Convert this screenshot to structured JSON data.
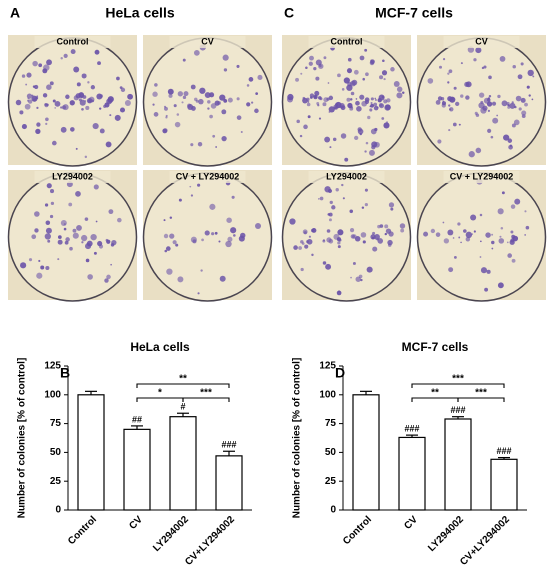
{
  "photo_groups": [
    {
      "letter": "A",
      "title": "HeLa cells",
      "panels": [
        "Control",
        "CV",
        "LY294002",
        "CV + LY294002"
      ]
    },
    {
      "letter": "C",
      "title": "MCF-7 cells",
      "panels": [
        "Control",
        "CV",
        "LY294002",
        "CV + LY294002"
      ]
    }
  ],
  "chart_data": [
    {
      "type": "bar",
      "letter": "B",
      "title": "HeLa cells",
      "y_label": "Number of colonies [% of control]",
      "categories": [
        "Control",
        "CV",
        "LY294002",
        "CV+LY294002"
      ],
      "values": [
        100,
        70,
        81,
        47
      ],
      "errors": [
        3,
        3,
        3,
        4
      ],
      "color": "#ffffff",
      "annotations": [
        null,
        "##",
        "#",
        "###"
      ],
      "comparisons": [
        {
          "groups": [
            "CV",
            "LY294002"
          ],
          "label": "*"
        },
        {
          "groups": [
            "LY294002",
            "CV+LY294002"
          ],
          "label": "***"
        },
        {
          "groups": [
            "CV",
            "CV+LY294002"
          ],
          "label": "**"
        }
      ],
      "ylim": [
        0,
        125
      ],
      "yticks": [
        0,
        25,
        50,
        75,
        100,
        125
      ]
    },
    {
      "type": "bar",
      "letter": "D",
      "title": "MCF-7 cells",
      "y_label": "Number of colonies [% of control]",
      "categories": [
        "Control",
        "CV",
        "LY294002",
        "CV+LY294002"
      ],
      "values": [
        100,
        63,
        79,
        44
      ],
      "errors": [
        3,
        2,
        2,
        1.5
      ],
      "color": "#ffffff",
      "annotations": [
        null,
        "###",
        "###",
        "###"
      ],
      "comparisons": [
        {
          "groups": [
            "CV",
            "LY294002"
          ],
          "label": "**"
        },
        {
          "groups": [
            "LY294002",
            "CV+LY294002"
          ],
          "label": "***"
        },
        {
          "groups": [
            "CV",
            "CV+LY294002"
          ],
          "label": "***"
        }
      ],
      "ylim": [
        0,
        125
      ],
      "yticks": [
        0,
        25,
        50,
        75,
        100,
        125
      ]
    }
  ]
}
